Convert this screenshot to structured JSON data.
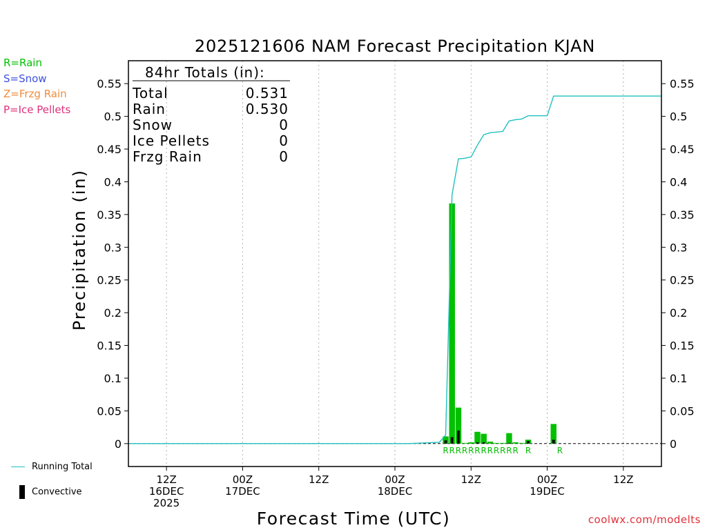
{
  "colors": {
    "rain": "#00c000",
    "snow": "#3c50e0",
    "frzg_rain": "#f08c3c",
    "ice_pellets": "#e0307a",
    "running_total": "#20c0c0",
    "convective": "#000000",
    "credit": "#e0303a"
  },
  "legend": {
    "rain": "R=Rain",
    "snow": "S=Snow",
    "frzg_rain": "Z=Frzg Rain",
    "ice_pellets": "P=Ice Pellets",
    "running_total": "Running Total",
    "convective": "Convective"
  },
  "totals": {
    "header": "84hr Totals (in):",
    "rows": [
      {
        "label": "Total",
        "value": "0.531"
      },
      {
        "label": "Rain",
        "value": "0.530"
      },
      {
        "label": "Snow",
        "value": "0"
      },
      {
        "label": "Ice Pellets",
        "value": "0"
      },
      {
        "label": "Frzg Rain",
        "value": "0"
      }
    ]
  },
  "credit": "coolwx.com/modelts",
  "chart_data": {
    "type": "bar",
    "title": "2025121606 NAM Forecast Precipitation KJAN",
    "xlabel": "Forecast Time (UTC)",
    "ylabel": "Precipitation (in)",
    "ylim": [
      -0.035,
      0.585
    ],
    "xlim": [
      6,
      90
    ],
    "grid": "vertical dotted at x tick positions",
    "y_ticks": [
      0,
      0.05,
      0.1,
      0.15,
      0.2,
      0.25,
      0.3,
      0.35,
      0.4,
      0.45,
      0.5,
      0.55
    ],
    "y_tick_labels": [
      "0",
      "0.05",
      "0.1",
      "0.15",
      "0.2",
      "0.25",
      "0.3",
      "0.35",
      "0.4",
      "0.45",
      "0.5",
      "0.55"
    ],
    "x_ticks": [
      {
        "x": 12,
        "lines": [
          "12Z",
          "16DEC",
          "2025"
        ]
      },
      {
        "x": 24,
        "lines": [
          "00Z",
          "17DEC"
        ]
      },
      {
        "x": 36,
        "lines": [
          "12Z"
        ]
      },
      {
        "x": 48,
        "lines": [
          "00Z",
          "18DEC"
        ]
      },
      {
        "x": 60,
        "lines": [
          "12Z"
        ]
      },
      {
        "x": 72,
        "lines": [
          "00Z",
          "19DEC"
        ]
      },
      {
        "x": 84,
        "lines": [
          "12Z"
        ]
      }
    ],
    "bars": [
      {
        "x": 56,
        "total": 0.011,
        "convective": 0.005
      },
      {
        "x": 57,
        "total": 0.367,
        "convective": 0.01
      },
      {
        "x": 58,
        "total": 0.055,
        "convective": 0.02
      },
      {
        "x": 59,
        "total": 0.001,
        "convective": 0
      },
      {
        "x": 60,
        "total": 0.002,
        "convective": 0
      },
      {
        "x": 61,
        "total": 0.018,
        "convective": 0.002
      },
      {
        "x": 62,
        "total": 0.015,
        "convective": 0.002
      },
      {
        "x": 63,
        "total": 0.003,
        "convective": 0
      },
      {
        "x": 64,
        "total": 0.001,
        "convective": 0
      },
      {
        "x": 65,
        "total": 0.001,
        "convective": 0
      },
      {
        "x": 66,
        "total": 0.016,
        "convective": 0.001
      },
      {
        "x": 67,
        "total": 0.002,
        "convective": 0
      },
      {
        "x": 68,
        "total": 0.001,
        "convective": 0
      },
      {
        "x": 69,
        "total": 0.006,
        "convective": 0.004
      },
      {
        "x": 73,
        "total": 0.03,
        "convective": 0.006
      }
    ],
    "precip_type_labels": [
      {
        "x": 56,
        "text": "R"
      },
      {
        "x": 57,
        "text": "R"
      },
      {
        "x": 58,
        "text": "R"
      },
      {
        "x": 59,
        "text": "R"
      },
      {
        "x": 60,
        "text": "R"
      },
      {
        "x": 61,
        "text": "R"
      },
      {
        "x": 62,
        "text": "R"
      },
      {
        "x": 63,
        "text": "R"
      },
      {
        "x": 64,
        "text": "R"
      },
      {
        "x": 65,
        "text": "R"
      },
      {
        "x": 66,
        "text": "R"
      },
      {
        "x": 67,
        "text": "R"
      },
      {
        "x": 69,
        "text": "R"
      },
      {
        "x": 74,
        "text": "R"
      }
    ],
    "running_total": [
      [
        6,
        0
      ],
      [
        50,
        0
      ],
      [
        55,
        0.002
      ],
      [
        56,
        0.013
      ],
      [
        57,
        0.38
      ],
      [
        58,
        0.435
      ],
      [
        59,
        0.436
      ],
      [
        60,
        0.438
      ],
      [
        61,
        0.456
      ],
      [
        62,
        0.472
      ],
      [
        63,
        0.475
      ],
      [
        64,
        0.476
      ],
      [
        65,
        0.477
      ],
      [
        66,
        0.493
      ],
      [
        67,
        0.495
      ],
      [
        68,
        0.496
      ],
      [
        69,
        0.501
      ],
      [
        70,
        0.501
      ],
      [
        71,
        0.501
      ],
      [
        72,
        0.501
      ],
      [
        73,
        0.531
      ],
      [
        90,
        0.531
      ]
    ]
  }
}
